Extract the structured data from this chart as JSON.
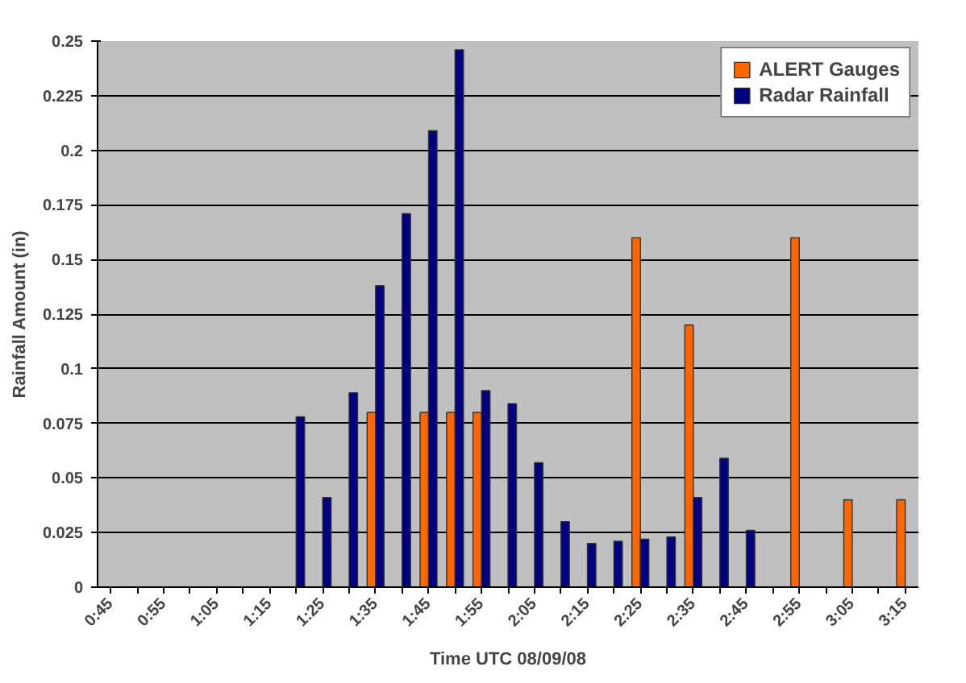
{
  "chart_data": {
    "type": "bar",
    "xlabel": "Time UTC 08/09/08",
    "ylabel": "Rainfall Amount (in)",
    "categories": [
      "0:45",
      null,
      "0:55",
      null,
      "1:05",
      null,
      "1:15",
      null,
      "1:25",
      null,
      "1:35",
      null,
      "1:45",
      null,
      "1:55",
      null,
      "2:05",
      null,
      "2:15",
      null,
      "2:25",
      null,
      "2:35",
      null,
      "2:45",
      null,
      "2:55",
      null,
      "3:05",
      null,
      "3:15"
    ],
    "series": [
      {
        "name": "ALERT Gauges",
        "color": "#ff6600",
        "values": [
          null,
          null,
          null,
          null,
          null,
          null,
          null,
          null,
          null,
          null,
          0.08,
          null,
          0.08,
          0.08,
          0.08,
          null,
          null,
          null,
          null,
          null,
          0.16,
          null,
          0.12,
          null,
          null,
          null,
          0.16,
          null,
          0.04,
          null,
          0.04
        ]
      },
      {
        "name": "Radar Rainfall",
        "color": "#000080",
        "values": [
          null,
          null,
          null,
          null,
          null,
          null,
          null,
          0.078,
          0.041,
          0.089,
          0.138,
          0.171,
          0.209,
          0.246,
          0.09,
          0.084,
          0.057,
          0.03,
          0.02,
          0.021,
          0.022,
          0.023,
          0.041,
          0.059,
          0.026,
          null,
          null,
          null,
          null,
          null,
          null
        ]
      }
    ],
    "ylim": [
      0,
      0.25
    ],
    "yticks": [
      0,
      0.025,
      0.05,
      0.075,
      0.1,
      0.125,
      0.15,
      0.175,
      0.2,
      0.225,
      0.25
    ],
    "grid": "y",
    "legend": "top right"
  }
}
